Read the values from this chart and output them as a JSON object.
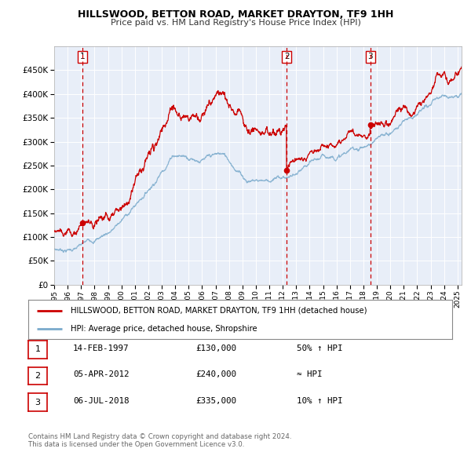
{
  "title": "HILLSWOOD, BETTON ROAD, MARKET DRAYTON, TF9 1HH",
  "subtitle": "Price paid vs. HM Land Registry's House Price Index (HPI)",
  "red_label": "HILLSWOOD, BETTON ROAD, MARKET DRAYTON, TF9 1HH (detached house)",
  "blue_label": "HPI: Average price, detached house, Shropshire",
  "transactions": [
    {
      "num": 1,
      "date": "14-FEB-1997",
      "price": "£130,000",
      "rel": "50% ↑ HPI",
      "year": 1997.12
    },
    {
      "num": 2,
      "date": "05-APR-2012",
      "price": "£240,000",
      "rel": "≈ HPI",
      "year": 2012.29
    },
    {
      "num": 3,
      "date": "06-JUL-2018",
      "price": "£335,000",
      "rel": "10% ↑ HPI",
      "year": 2018.51
    }
  ],
  "transaction_prices": [
    130000,
    240000,
    335000
  ],
  "footnote": "Contains HM Land Registry data © Crown copyright and database right 2024.\nThis data is licensed under the Open Government Licence v3.0.",
  "ylim": [
    0,
    500000
  ],
  "xlim_start": 1995.0,
  "xlim_end": 2025.3,
  "bg_color": "#e8eef8",
  "red_color": "#cc0000",
  "blue_color": "#7aaacc",
  "grid_color": "#ffffff",
  "dashed_color": "#cc0000"
}
